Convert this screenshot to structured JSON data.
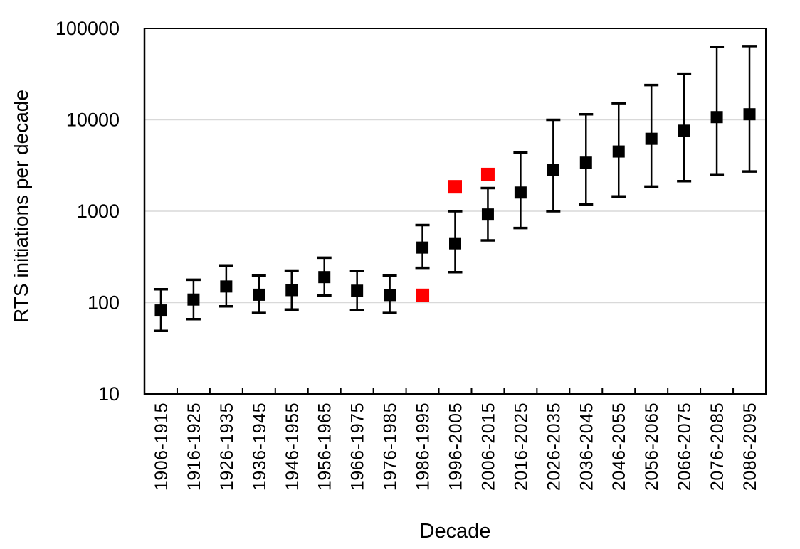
{
  "chart_data": {
    "type": "scatter",
    "title": "",
    "xlabel": "Decade",
    "ylabel": "RTS initiations per decade",
    "y_scale": "log",
    "ylim": [
      10,
      100000
    ],
    "y_ticks": [
      10,
      100,
      1000,
      10000,
      100000
    ],
    "y_tick_labels": [
      "10",
      "100",
      "1000",
      "10000",
      "100000"
    ],
    "gridlines": [
      100,
      1000,
      10000
    ],
    "gridline_color": "#D9D9D9",
    "axis_color": "#000000",
    "text_color": "#000000",
    "background_color": "#FFFFFF",
    "legend": "none",
    "categories": [
      "1906-1915",
      "1916-1925",
      "1926-1935",
      "1936-1945",
      "1946-1955",
      "1956-1965",
      "1966-1975",
      "1976-1985",
      "1986-1995",
      "1996-2005",
      "2006-2015",
      "2016-2025",
      "2026-2035",
      "2036-2045",
      "2046-2055",
      "2056-2065",
      "2066-2075",
      "2076-2085",
      "2086-2095"
    ],
    "series": [
      {
        "name": "black",
        "marker": "square",
        "marker_size": 17,
        "color": "#000000",
        "values": [
          82,
          108,
          150,
          122,
          137,
          190,
          135,
          121,
          400,
          445,
          920,
          1600,
          2850,
          3400,
          4500,
          6200,
          7600,
          10700,
          11500
        ],
        "err_low": [
          49,
          66,
          91,
          77,
          84,
          120,
          83,
          77,
          240,
          215,
          480,
          655,
          1000,
          1190,
          1450,
          1860,
          2130,
          2530,
          2720
        ],
        "err_high": [
          140,
          178,
          255,
          198,
          224,
          310,
          222,
          198,
          705,
          1000,
          1790,
          4400,
          10000,
          11500,
          15200,
          24000,
          32000,
          63000,
          64000
        ]
      },
      {
        "name": "red",
        "marker": "square",
        "marker_size": 19,
        "color": "#FF0000",
        "values": [
          null,
          null,
          null,
          null,
          null,
          null,
          null,
          null,
          120,
          1850,
          2520,
          null,
          null,
          null,
          null,
          null,
          null,
          null,
          null
        ]
      }
    ]
  }
}
